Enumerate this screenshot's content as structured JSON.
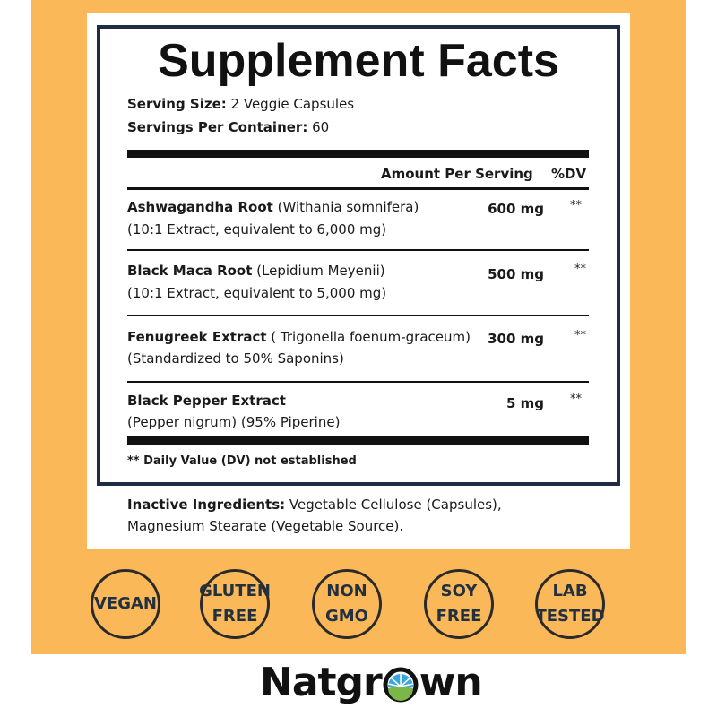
{
  "title": "Supplement Facts",
  "serving_size": {
    "label": "Serving Size:",
    "value": " 2 Veggie Capsules"
  },
  "servings_per_container": {
    "label": "Servings Per Container:",
    "value": " 60"
  },
  "header": {
    "amount": "Amount Per Serving",
    "dv": "%DV"
  },
  "ingredients": [
    {
      "name": "Ashwagandha Root",
      "latin": " (Withania somnifera)",
      "detail": "(10:1 Extract, equivalent to 6,000 mg)",
      "amount": "600 mg",
      "dv": "**"
    },
    {
      "name": "Black Maca Root",
      "latin": " (Lepidium Meyenii)",
      "detail": "(10:1 Extract, equivalent to 5,000 mg)",
      "amount": "500 mg",
      "dv": "**"
    },
    {
      "name": "Fenugreek Extract",
      "latin": " ( Trigonella foenum-graceum)",
      "detail": "(Standardized to 50% Saponins)",
      "amount": "300 mg",
      "dv": "**"
    },
    {
      "name": "Black Pepper Extract",
      "latin": "",
      "detail": "(Pepper nigrum) (95% Piperine)",
      "amount": "5 mg",
      "dv": "**"
    }
  ],
  "footnote": "** Daily Value (DV) not established",
  "inactive": {
    "label": "Inactive Ingredients:",
    "line1": " Vegetable Cellulose (Capsules),",
    "line2": "Magnesium Stearate (Vegetable Source)."
  },
  "badges": [
    [
      "VEGAN"
    ],
    [
      "GLUTEN",
      "FREE"
    ],
    [
      "NON",
      "GMO"
    ],
    [
      "SOY",
      "FREE"
    ],
    [
      "LAB",
      "TESTED"
    ]
  ],
  "brand": {
    "name": "Natgrown",
    "before": "Natgr",
    "after": "wn"
  },
  "colors": {
    "background": "#fbb859",
    "border": "#1e2d44",
    "logo_blue": "#3aa6dd",
    "logo_green": "#7ab648"
  }
}
